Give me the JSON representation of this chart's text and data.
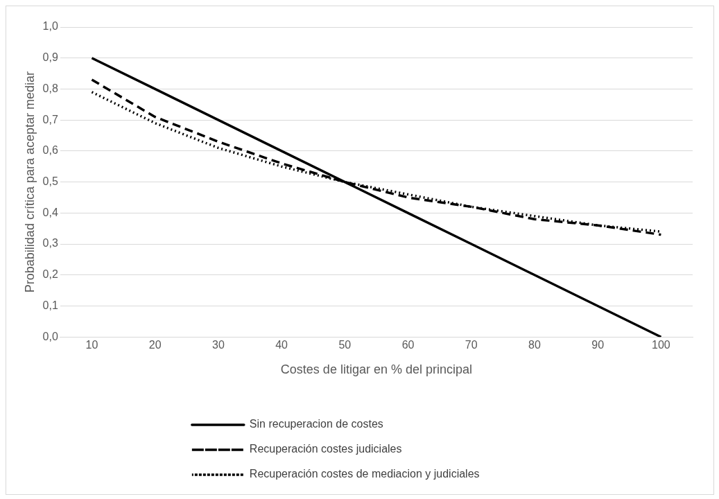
{
  "chart_data": {
    "type": "line",
    "xlabel": "Costes de litigar en % del principal",
    "ylabel": "Probabilidad crítica para aceptar mediar",
    "categories": [
      "10",
      "20",
      "30",
      "40",
      "50",
      "60",
      "70",
      "80",
      "90",
      "100"
    ],
    "series": [
      {
        "name": "Sin recuperacion de costes",
        "color": "#000000",
        "line_style": "solid",
        "values": [
          0.9,
          0.8,
          0.7,
          0.6,
          0.5,
          0.4,
          0.3,
          0.2,
          0.1,
          0.0
        ]
      },
      {
        "name": "Recuperación costes judiciales",
        "color": "#000000",
        "line_style": "dashed",
        "values": [
          0.83,
          0.71,
          0.63,
          0.56,
          0.5,
          0.45,
          0.42,
          0.38,
          0.36,
          0.33
        ]
      },
      {
        "name": "Recuperación costes de mediacion y judiciales",
        "color": "#000000",
        "line_style": "dotted",
        "values": [
          0.79,
          0.69,
          0.61,
          0.55,
          0.5,
          0.46,
          0.42,
          0.39,
          0.36,
          0.34
        ]
      }
    ],
    "ylim": [
      0,
      1
    ],
    "yticks": [
      {
        "value": 0,
        "label": "0,0"
      },
      {
        "value": 0.1,
        "label": "0,1"
      },
      {
        "value": 0.2,
        "label": "0,2"
      },
      {
        "value": 0.3,
        "label": "0,3"
      },
      {
        "value": 0.4,
        "label": "0,4"
      },
      {
        "value": 0.5,
        "label": "0,5"
      },
      {
        "value": 0.6,
        "label": "0,6"
      },
      {
        "value": 0.7,
        "label": "0,7"
      },
      {
        "value": 0.8,
        "label": "0,8"
      },
      {
        "value": 0.9,
        "label": "0,9"
      },
      {
        "value": 1,
        "label": "1,0"
      }
    ],
    "grid": "y",
    "legend": "bottom",
    "marker": "none"
  }
}
